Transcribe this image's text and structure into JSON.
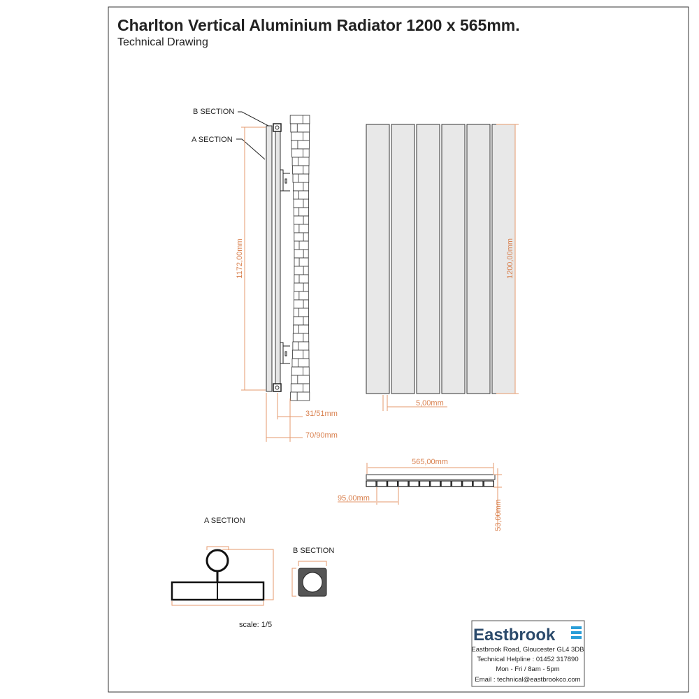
{
  "title": "Charlton Vertical Aluminium Radiator 1200 x 565mm.",
  "subtitle": "Technical Drawing",
  "side_view": {
    "b_section_label": "B SECTION",
    "a_section_label": "A SECTION",
    "height_dim": "1172,00mm",
    "depth_dim_1": "31/51mm",
    "depth_dim_2": "70/90mm"
  },
  "front_view": {
    "height_dim": "1200,00mm",
    "gap_dim": "5,00mm",
    "panel_count": 6
  },
  "top_view": {
    "width_dim": "565,00mm",
    "pitch_dim": "95,00mm",
    "depth_dim": "53,00mm"
  },
  "sections": {
    "a_title": "A SECTION",
    "b_title": "B SECTION",
    "scale": "scale: 1/5"
  },
  "company": {
    "logo_text": "Eastbrook",
    "address": "Eastbrook Road, Gloucester GL4 3DB",
    "helpline": "Technical Helpline : 01452 317890",
    "hours": "Mon - Fri / 8am - 5pm",
    "email": "Email : technical@eastbrookco.com",
    "brand_color": "#2b4a6b",
    "logo_icon_color": "#2a9ed8"
  },
  "colors": {
    "dimension": "#d9814f",
    "line": "#222222"
  }
}
